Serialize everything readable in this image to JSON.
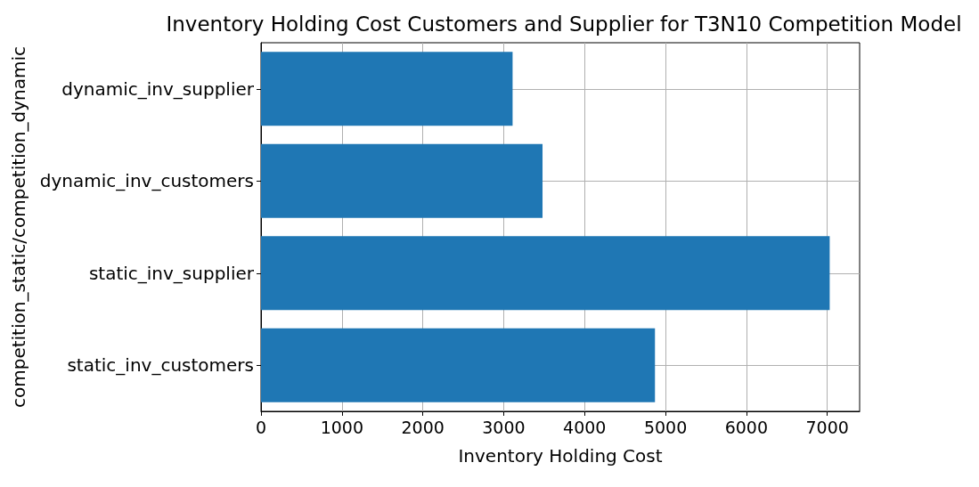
{
  "chart_data": {
    "type": "bar",
    "orientation": "horizontal",
    "title": "Inventory Holding Cost Customers and Supplier for T3N10 Competition Model",
    "xlabel": "Inventory Holding Cost",
    "ylabel": "competition_static/competition_dynamic",
    "categories": [
      "dynamic_inv_supplier",
      "dynamic_inv_customers",
      "static_inv_supplier",
      "static_inv_customers"
    ],
    "values": [
      3110,
      3480,
      7030,
      4870
    ],
    "color": "#1f77b4",
    "xlim": [
      0,
      7400
    ],
    "xticks": [
      0,
      1000,
      2000,
      3000,
      4000,
      5000,
      6000,
      7000
    ],
    "grid": true
  }
}
